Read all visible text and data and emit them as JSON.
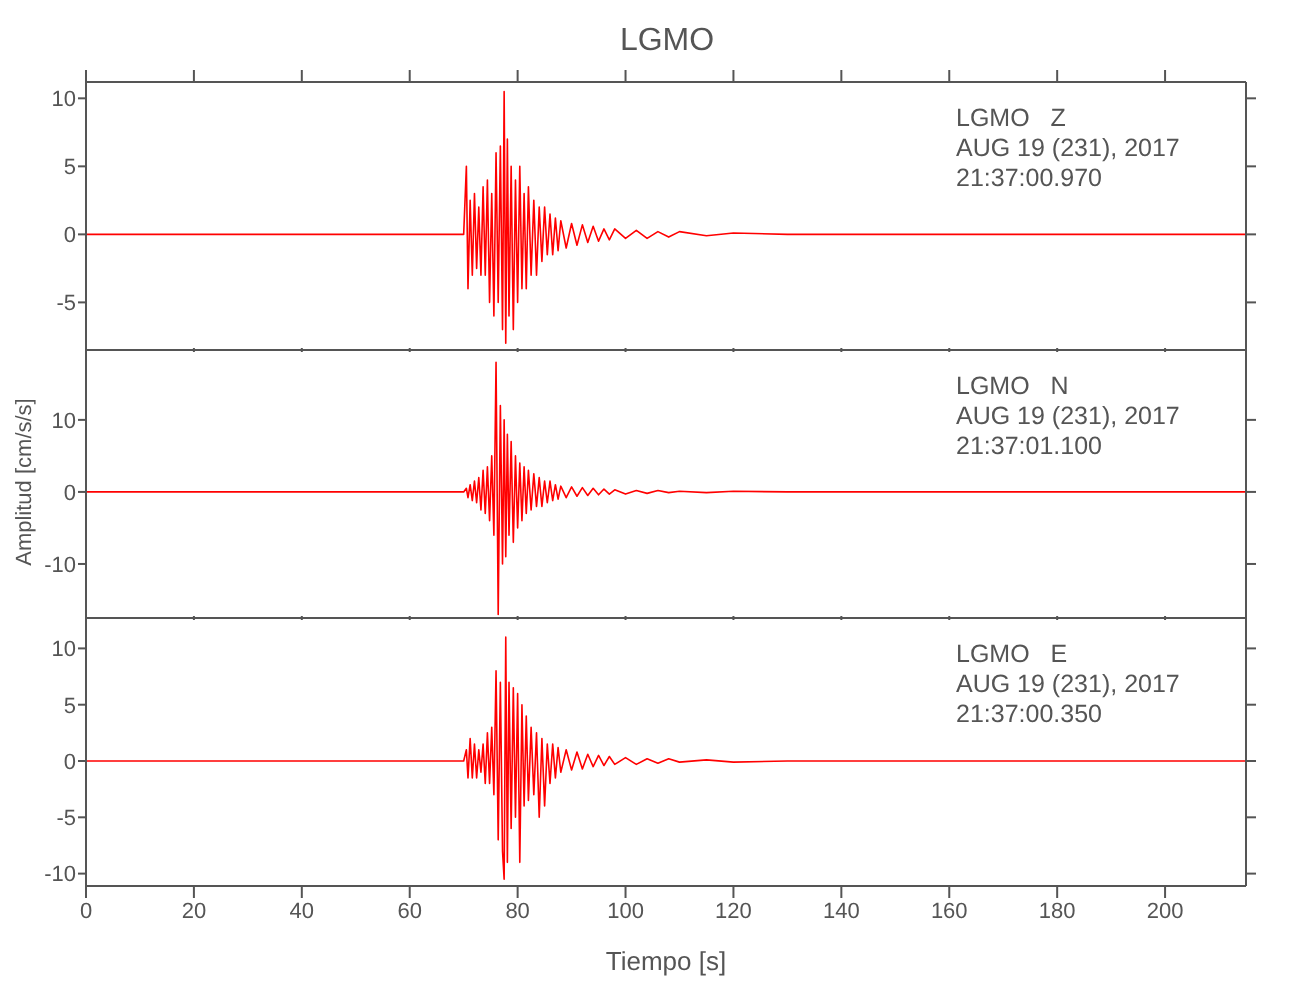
{
  "chart_data": [
    {
      "type": "line",
      "title": "LGMO",
      "annotations": [
        "LGMO   Z",
        "AUG 19 (231), 2017",
        "21:37:00.970"
      ],
      "xlim": [
        0,
        215
      ],
      "xticks": [
        0,
        20,
        40,
        60,
        80,
        100,
        120,
        140,
        160,
        180,
        200
      ],
      "ylim": [
        -8.5,
        11.2
      ],
      "yticks": [
        -5,
        0,
        5,
        10
      ],
      "tick_labels": "y",
      "x": [
        0,
        10,
        20,
        30,
        40,
        50,
        60,
        70,
        70.5,
        70.8,
        71.2,
        71.6,
        72,
        72.4,
        72.8,
        73.2,
        73.6,
        74,
        74.4,
        74.8,
        75.2,
        75.6,
        76,
        76.4,
        76.8,
        77.2,
        77.5,
        77.8,
        78.1,
        78.4,
        78.8,
        79.2,
        79.6,
        80,
        80.4,
        80.8,
        81.2,
        81.6,
        82,
        82.5,
        83,
        83.5,
        84,
        84.5,
        85,
        85.5,
        86,
        86.5,
        87,
        87.5,
        88,
        89,
        90,
        91,
        92,
        93,
        94,
        95,
        96,
        97,
        98,
        100,
        102,
        104,
        106,
        108,
        110,
        115,
        120,
        130,
        140,
        160,
        180,
        200,
        215
      ],
      "series": [
        {
          "color": "#ff0000",
          "values": [
            0,
            0,
            0,
            0,
            0,
            0,
            0,
            0,
            5,
            -4,
            2.5,
            -3,
            3,
            -2.5,
            2,
            -3,
            3.5,
            -3,
            4,
            -5,
            3,
            -6,
            6,
            -5,
            6.5,
            -7,
            10.5,
            -8,
            7,
            -6,
            5,
            -7,
            4,
            -5,
            5,
            -4,
            3,
            -4,
            3.5,
            -3,
            2.5,
            -3,
            2,
            -2,
            2,
            -1.5,
            1.5,
            -1.5,
            1.2,
            -1.2,
            1,
            -1,
            0.8,
            -0.8,
            0.7,
            -0.6,
            0.6,
            -0.5,
            0.4,
            -0.4,
            0.4,
            -0.3,
            0.3,
            -0.3,
            0.2,
            -0.2,
            0.2,
            -0.1,
            0.1,
            0,
            0,
            0,
            0,
            0,
            0
          ]
        }
      ]
    },
    {
      "type": "line",
      "ylabel": "Amplitud [cm/s/s]",
      "annotations": [
        "LGMO   N",
        "AUG 19 (231), 2017",
        "21:37:01.100"
      ],
      "xlim": [
        0,
        215
      ],
      "xticks": [
        0,
        20,
        40,
        60,
        80,
        100,
        120,
        140,
        160,
        180,
        200
      ],
      "ylim": [
        -17.5,
        19.7
      ],
      "yticks": [
        -10,
        0,
        10
      ],
      "tick_labels": "y",
      "x": [
        0,
        10,
        20,
        30,
        40,
        50,
        60,
        70,
        70.5,
        70.8,
        71.2,
        71.6,
        72,
        72.4,
        72.8,
        73.2,
        73.6,
        74,
        74.4,
        74.8,
        75.2,
        75.6,
        76,
        76.4,
        76.8,
        77.2,
        77.5,
        77.8,
        78.1,
        78.4,
        78.8,
        79.2,
        79.6,
        80,
        80.4,
        80.8,
        81.2,
        81.6,
        82,
        82.5,
        83,
        83.5,
        84,
        84.5,
        85,
        85.5,
        86,
        86.5,
        87,
        87.5,
        88,
        89,
        90,
        91,
        92,
        93,
        94,
        95,
        96,
        97,
        98,
        100,
        102,
        104,
        106,
        108,
        110,
        115,
        120,
        130,
        140,
        160,
        180,
        200,
        215
      ],
      "series": [
        {
          "color": "#ff0000",
          "values": [
            0,
            0,
            0,
            0,
            0,
            0,
            0,
            0,
            0.5,
            -0.8,
            1,
            -1.2,
            1.5,
            -1.5,
            2,
            -2.5,
            3,
            -3,
            3.5,
            -4,
            5,
            -6,
            18,
            -17,
            12,
            -10,
            10,
            -9,
            8,
            -6,
            7,
            -7,
            5,
            -5,
            4,
            -4,
            3.5,
            -3,
            3,
            -2.5,
            2.5,
            -2,
            2,
            -2,
            1.5,
            -1.5,
            1.5,
            -1.2,
            1,
            -1,
            0.8,
            -0.8,
            0.7,
            -0.6,
            0.6,
            -0.5,
            0.5,
            -0.4,
            0.4,
            -0.3,
            0.3,
            -0.3,
            0.2,
            -0.2,
            0.2,
            -0.1,
            0.1,
            -0.1,
            0.1,
            0,
            0,
            0,
            0,
            0,
            0
          ]
        }
      ]
    },
    {
      "type": "line",
      "xlabel": "Tiempo [s]",
      "annotations": [
        "LGMO   E",
        "AUG 19 (231), 2017",
        "21:37:00.350"
      ],
      "xlim": [
        0,
        215
      ],
      "xticks": [
        0,
        20,
        40,
        60,
        80,
        100,
        120,
        140,
        160,
        180,
        200
      ],
      "ylim": [
        -11.1,
        12.7
      ],
      "yticks": [
        -10,
        -5,
        0,
        5,
        10
      ],
      "x": [
        0,
        10,
        20,
        30,
        40,
        50,
        60,
        70,
        70.5,
        70.8,
        71.2,
        71.6,
        72,
        72.4,
        72.8,
        73.2,
        73.6,
        74,
        74.4,
        74.8,
        75.2,
        75.6,
        76,
        76.4,
        76.8,
        77.2,
        77.5,
        77.8,
        78.1,
        78.4,
        78.8,
        79.2,
        79.6,
        80,
        80.4,
        80.8,
        81.2,
        81.6,
        82,
        82.5,
        83,
        83.5,
        84,
        84.5,
        85,
        85.5,
        86,
        86.5,
        87,
        87.5,
        88,
        89,
        90,
        91,
        92,
        93,
        94,
        95,
        96,
        97,
        98,
        100,
        102,
        104,
        106,
        108,
        110,
        115,
        120,
        130,
        140,
        160,
        180,
        200,
        215
      ],
      "series": [
        {
          "color": "#ff0000",
          "values": [
            0,
            0,
            0,
            0,
            0,
            0,
            0,
            0,
            1,
            -1.5,
            2,
            -1.5,
            1.5,
            -1.5,
            1,
            -1,
            1.5,
            -2,
            2.5,
            -2,
            3,
            -3,
            8,
            -7,
            7,
            -8,
            -10.5,
            11,
            -9,
            7,
            -6,
            6.5,
            -5,
            6,
            -9,
            5,
            -4,
            4,
            -3.5,
            3,
            -3,
            2.5,
            -5,
            2,
            -4,
            1.5,
            -2,
            1.5,
            -1.5,
            1.2,
            -1,
            1,
            -0.8,
            0.8,
            -0.7,
            0.6,
            -0.5,
            0.5,
            -0.4,
            0.4,
            -0.3,
            0.3,
            -0.3,
            0.2,
            -0.2,
            0.2,
            -0.1,
            0.1,
            -0.1,
            0,
            0,
            0,
            0,
            0,
            0
          ]
        }
      ]
    }
  ]
}
